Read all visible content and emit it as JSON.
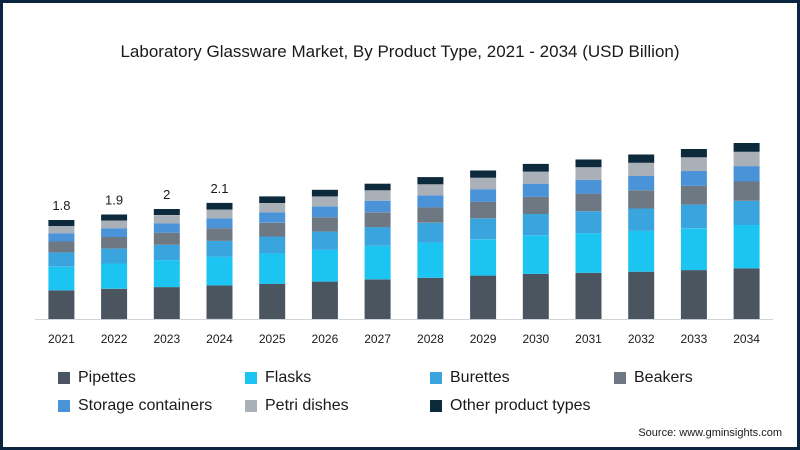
{
  "chart_data": {
    "type": "bar",
    "stacked": true,
    "title": "Laboratory Glassware Market, By Product Type, 2021 - 2034 (USD Billion)",
    "categories": [
      "2021",
      "2022",
      "2023",
      "2024",
      "2025",
      "2026",
      "2027",
      "2028",
      "2029",
      "2030",
      "2031",
      "2032",
      "2033",
      "2034"
    ],
    "total_labels": [
      "1.8",
      "1.9",
      "2",
      "2.1",
      "",
      "",
      "",
      "",
      "",
      "",
      "",
      "",
      "",
      ""
    ],
    "series": [
      {
        "name": "Pipettes",
        "color": "#4a5560",
        "values": [
          0.52,
          0.55,
          0.58,
          0.61,
          0.64,
          0.68,
          0.72,
          0.75,
          0.79,
          0.82,
          0.84,
          0.86,
          0.89,
          0.92
        ]
      },
      {
        "name": "Flasks",
        "color": "#1cc4f2",
        "values": [
          0.43,
          0.46,
          0.49,
          0.52,
          0.55,
          0.58,
          0.61,
          0.64,
          0.66,
          0.7,
          0.72,
          0.74,
          0.76,
          0.79
        ]
      },
      {
        "name": "Burettes",
        "color": "#3aa4de",
        "values": [
          0.26,
          0.27,
          0.28,
          0.29,
          0.31,
          0.33,
          0.34,
          0.36,
          0.38,
          0.39,
          0.4,
          0.41,
          0.43,
          0.44
        ]
      },
      {
        "name": "Beakers",
        "color": "#6e7883",
        "values": [
          0.2,
          0.21,
          0.22,
          0.23,
          0.25,
          0.26,
          0.27,
          0.28,
          0.3,
          0.31,
          0.32,
          0.33,
          0.34,
          0.35
        ]
      },
      {
        "name": "Storage containers",
        "color": "#4b93d8",
        "values": [
          0.15,
          0.16,
          0.17,
          0.18,
          0.19,
          0.2,
          0.21,
          0.22,
          0.23,
          0.24,
          0.25,
          0.26,
          0.27,
          0.28
        ]
      },
      {
        "name": "Petri dishes",
        "color": "#a9b0b7",
        "values": [
          0.13,
          0.14,
          0.15,
          0.16,
          0.17,
          0.18,
          0.19,
          0.2,
          0.21,
          0.22,
          0.23,
          0.24,
          0.25,
          0.26
        ]
      },
      {
        "name": "Other product types",
        "color": "#0d2a3c",
        "values": [
          0.11,
          0.11,
          0.11,
          0.12,
          0.12,
          0.12,
          0.12,
          0.13,
          0.13,
          0.14,
          0.14,
          0.15,
          0.15,
          0.16
        ]
      }
    ],
    "ylim": [
      0,
      3.5
    ],
    "xlabel": "",
    "ylabel": "",
    "grid": false,
    "legend_position": "bottom"
  },
  "source": "Source: www.gminsights.com"
}
